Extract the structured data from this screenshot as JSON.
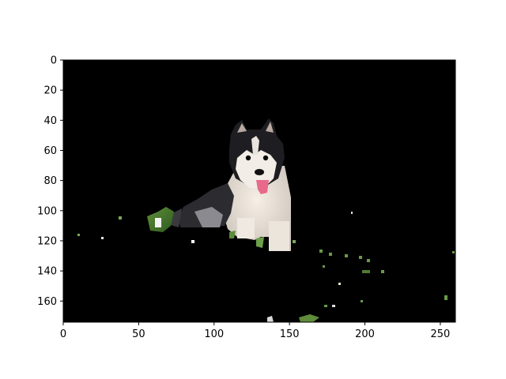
{
  "chart_data": {
    "type": "image",
    "title": "",
    "xlabel": "",
    "ylabel": "",
    "xlim": [
      0,
      260
    ],
    "ylim": [
      174,
      0
    ],
    "x_ticks": [
      0,
      50,
      100,
      150,
      200,
      250
    ],
    "y_ticks": [
      0,
      20,
      40,
      60,
      80,
      100,
      120,
      140,
      160
    ],
    "image_width": 260,
    "image_height": 174,
    "background_color": "#000000",
    "subject": "husky puppy sitting, segmented on black background",
    "axes_color": "#000000"
  }
}
